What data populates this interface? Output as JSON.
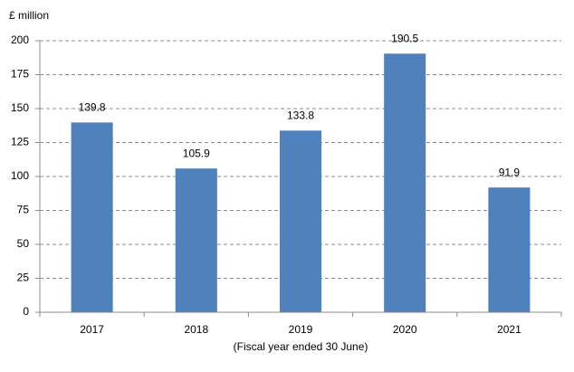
{
  "chart_data": {
    "type": "bar",
    "y_axis_label": "£ million",
    "x_axis_label": "(Fiscal year ended 30  June)",
    "categories": [
      "2017",
      "2018",
      "2019",
      "2020",
      "2021"
    ],
    "values": [
      139.8,
      105.9,
      133.8,
      190.5,
      91.9
    ],
    "color": "#4f81bd",
    "ylim": [
      0,
      200
    ],
    "yticks": [
      0,
      25,
      50,
      75,
      100,
      125,
      150,
      175,
      200
    ],
    "grid": true
  }
}
